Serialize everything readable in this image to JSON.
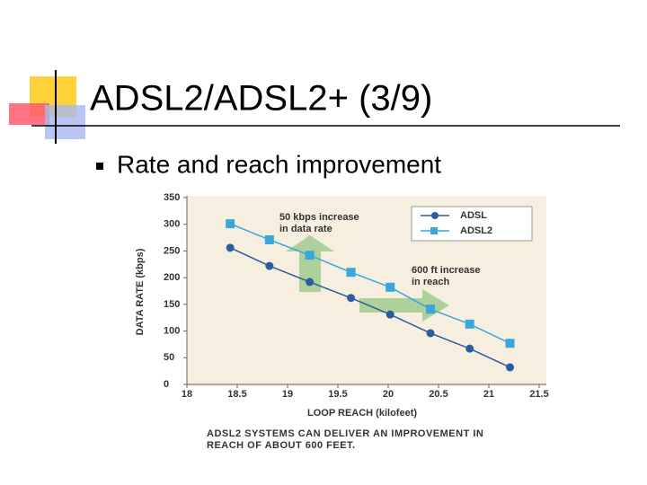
{
  "slide": {
    "title": "ADSL2/ADSL2+ (3/9)",
    "bullet": "Rate and reach improvement"
  },
  "chart_data": {
    "type": "line",
    "x": [
      18.43,
      18.82,
      19.22,
      19.63,
      20.02,
      20.42,
      20.81,
      21.21
    ],
    "series": [
      {
        "name": "ADSL",
        "color": "#2c5c9c",
        "marker": "circle",
        "values": [
          256,
          222,
          192,
          162,
          131,
          96,
          67,
          32
        ]
      },
      {
        "name": "ADSL2",
        "color": "#3aa6dc",
        "marker": "square",
        "values": [
          301,
          271,
          242,
          210,
          182,
          141,
          113,
          77
        ]
      }
    ],
    "xlim": [
      18,
      21.5
    ],
    "xticks": [
      18,
      18.5,
      19,
      19.5,
      20,
      20.5,
      21,
      21.5
    ],
    "ylim": [
      0,
      350
    ],
    "yticks": [
      0,
      50,
      100,
      150,
      200,
      250,
      300,
      350
    ],
    "xlabel": "LOOP REACH (kilofeet)",
    "ylabel": "DATA RATE (kbps)",
    "annotations": [
      [
        "50 kbps increase",
        "in data rate"
      ],
      [
        "600 ft increase",
        "in reach"
      ]
    ],
    "caption": [
      "ADSL2 SYSTEMS CAN DELIVER AN IMPROVEMENT IN",
      "REACH OF ABOUT 600 FEET."
    ],
    "legend": "upper right"
  }
}
